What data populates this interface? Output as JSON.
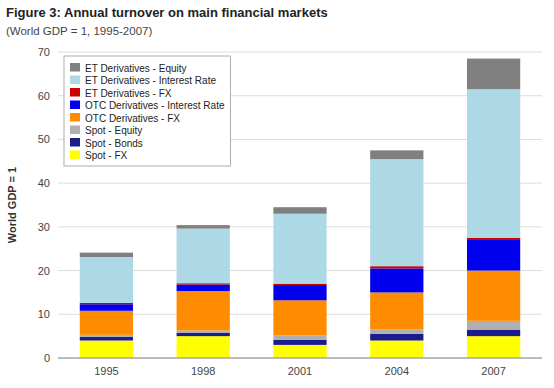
{
  "chart_data": {
    "type": "bar",
    "stacked": true,
    "title": "Figure 3: Annual turnover on main financial markets",
    "subtitle": "(World GDP = 1, 1995-2007)",
    "y_label": "World GDP = 1",
    "categories": [
      "1995",
      "1998",
      "2001",
      "2004",
      "2007"
    ],
    "series": [
      {
        "name": "Spot - FX",
        "color": "#FFFF00",
        "values": [
          4.0,
          5.0,
          3.0,
          4.0,
          5.0
        ]
      },
      {
        "name": "Spot - Bonds",
        "color": "#1C1C8C",
        "values": [
          0.8,
          0.8,
          1.2,
          1.5,
          1.5
        ]
      },
      {
        "name": "Spot - Equity",
        "color": "#B0B0B0",
        "values": [
          0.5,
          0.5,
          1.0,
          1.0,
          2.0
        ]
      },
      {
        "name": "OTC Derivatives - FX",
        "color": "#FF8C00",
        "values": [
          5.5,
          9.0,
          8.0,
          8.5,
          11.5
        ]
      },
      {
        "name": "OTC Derivatives - Interest Rate",
        "color": "#0000EE",
        "values": [
          1.5,
          1.5,
          3.5,
          5.5,
          7.0
        ]
      },
      {
        "name": "ET Derivatives - FX",
        "color": "#CC0000",
        "values": [
          0.3,
          0.3,
          0.3,
          0.5,
          0.5
        ]
      },
      {
        "name": "ET Derivatives - Interest Rate",
        "color": "#ADD8E6",
        "values": [
          10.5,
          12.5,
          16.0,
          24.5,
          34.0
        ]
      },
      {
        "name": "ET Derivatives - Equity",
        "color": "#808080",
        "values": [
          1.0,
          0.8,
          1.5,
          2.0,
          7.0
        ]
      }
    ],
    "ylim": [
      0,
      70
    ],
    "yticks": [
      0,
      10,
      20,
      30,
      40,
      50,
      60,
      70
    ],
    "grid": true,
    "legend": "upper left"
  }
}
